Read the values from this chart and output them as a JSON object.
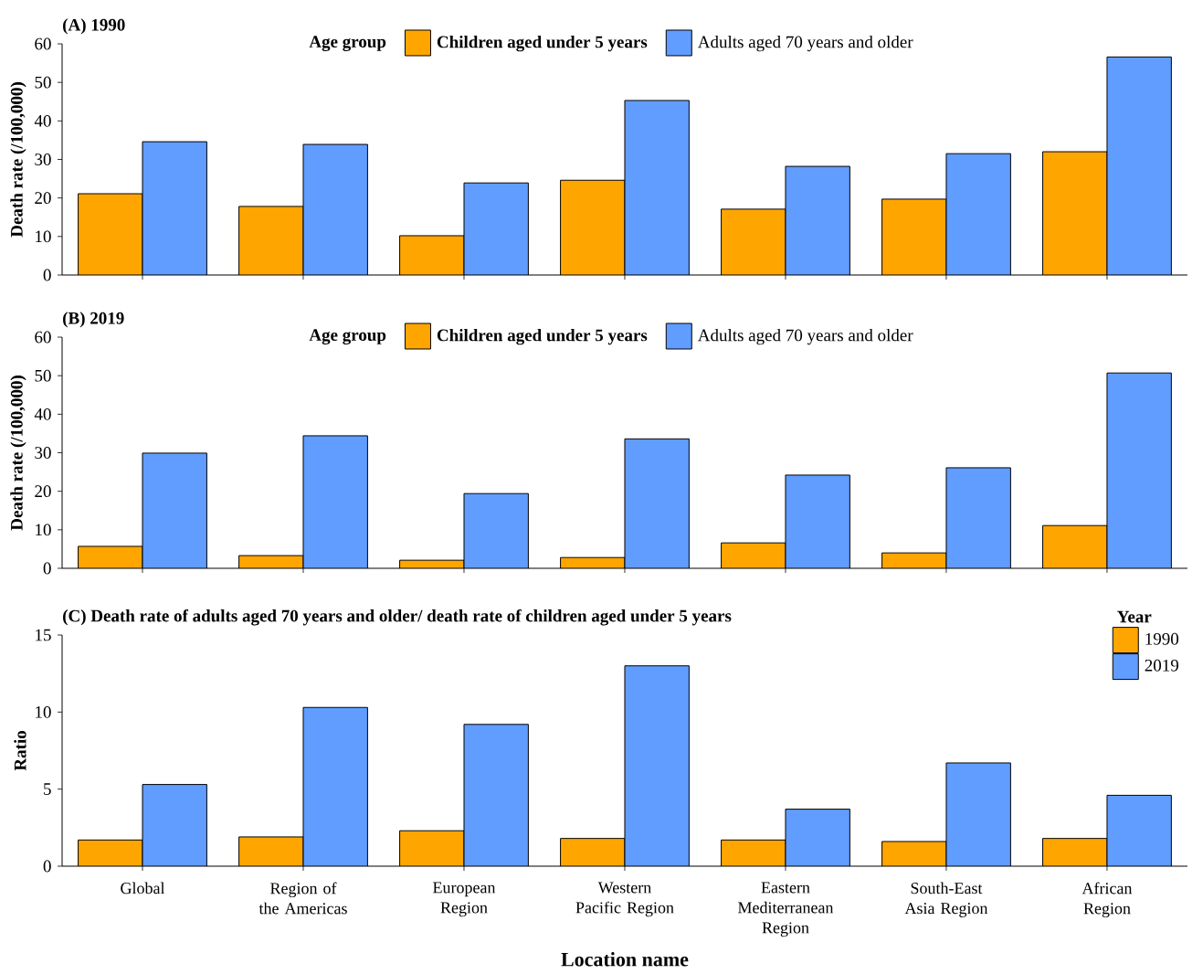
{
  "chart_data": [
    {
      "type": "bar",
      "title": "(A) 1990",
      "ylabel": "Death rate (/100,000)",
      "legend_title": "Age group",
      "legend": "top",
      "tick_labels": "y",
      "categories": [
        null,
        null,
        null,
        null,
        null,
        null,
        null
      ],
      "ylim": [
        0,
        60
      ],
      "yticks": [
        0,
        10,
        20,
        30,
        40,
        50,
        60
      ],
      "series": [
        {
          "name": "**Children aged under 5 years**",
          "color": "#ffa500",
          "values": [
            21.1,
            17.8,
            10.2,
            24.6,
            17.1,
            19.7,
            32.0
          ]
        },
        {
          "name": "Adults aged 70 years and older",
          "color": "#619cff",
          "values": [
            34.6,
            33.9,
            23.9,
            45.3,
            28.2,
            31.5,
            56.6
          ]
        }
      ]
    },
    {
      "type": "bar",
      "title": "(B) 2019",
      "ylabel": "Death rate (/100,000)",
      "legend_title": "Age group",
      "legend": "top",
      "tick_labels": "y",
      "categories": [
        null,
        null,
        null,
        null,
        null,
        null,
        null
      ],
      "ylim": [
        0,
        60
      ],
      "yticks": [
        0,
        10,
        20,
        30,
        40,
        50,
        60
      ],
      "series": [
        {
          "name": "**Children aged under 5 years**",
          "color": "#ffa500",
          "values": [
            5.7,
            3.3,
            2.1,
            2.8,
            6.6,
            4.0,
            11.1
          ]
        },
        {
          "name": "Adults aged 70 years and older",
          "color": "#619cff",
          "values": [
            29.9,
            34.4,
            19.4,
            33.6,
            24.2,
            26.1,
            50.7
          ]
        }
      ]
    },
    {
      "type": "bar",
      "title": "(C) Death rate of adults aged 70 years and older/ death rate of children aged under 5 years",
      "ylabel": "Ratio",
      "xlabel": "Location name",
      "legend_title": "Year",
      "legend": "top right",
      "categories": [
        "Global",
        "Region of the Americas",
        "European Region",
        "Western Pacific Region",
        "Eastern Mediterranean Region",
        "South-East Asia Region",
        "African Region"
      ],
      "ylim": [
        0,
        15
      ],
      "yticks": [
        0,
        5,
        10,
        15
      ],
      "series": [
        {
          "name": "1990",
          "color": "#ffa500",
          "values": [
            1.7,
            1.9,
            2.3,
            1.8,
            1.7,
            1.6,
            1.8
          ]
        },
        {
          "name": "2019",
          "color": "#619cff",
          "values": [
            5.3,
            10.3,
            9.2,
            13.0,
            3.7,
            6.7,
            4.6
          ]
        }
      ]
    }
  ]
}
